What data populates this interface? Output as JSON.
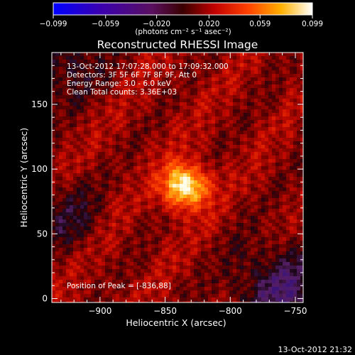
{
  "colorbar": {
    "tick_labels": [
      "-0.099",
      "-0.059",
      "-0.020",
      "0.020",
      "0.059",
      "0.099"
    ],
    "units": "(photons cm⁻² s⁻¹ asec⁻²)",
    "range": [
      -0.099,
      0.099
    ]
  },
  "chart_data": {
    "type": "heatmap",
    "title": "Reconstructed RHESSI Image",
    "xlabel": "Heliocentric X (arcsec)",
    "ylabel": "Heliocentric Y (arcsec)",
    "xlim": [
      -937,
      -744
    ],
    "ylim": [
      -3,
      190
    ],
    "x_ticks": [
      -900,
      -850,
      -800,
      -750
    ],
    "y_ticks": [
      0,
      50,
      100,
      150
    ],
    "x_tick_labels": [
      "−900",
      "−850",
      "−800",
      "−750"
    ],
    "y_tick_labels": [
      "0",
      "50",
      "100",
      "150"
    ],
    "peak": [
      -836,
      88
    ],
    "colormap": "RHESSI heat (blue-purple-red-yellow-white)",
    "annotations": {
      "time_range": "13-Oct-2012 17:07:28.000 to 17:09:32.000",
      "detectors": "Detectors: 3F 5F 6F 7F 8F 9F, Att 0",
      "energy": "Energy Range: 3.0 - 6.0 keV",
      "clean": "Clean    Total counts: 3.36E+03",
      "peak_label": "Position of Peak = [-836,88]"
    }
  },
  "footer": {
    "timestamp": "13-Oct-2012 21:32"
  }
}
